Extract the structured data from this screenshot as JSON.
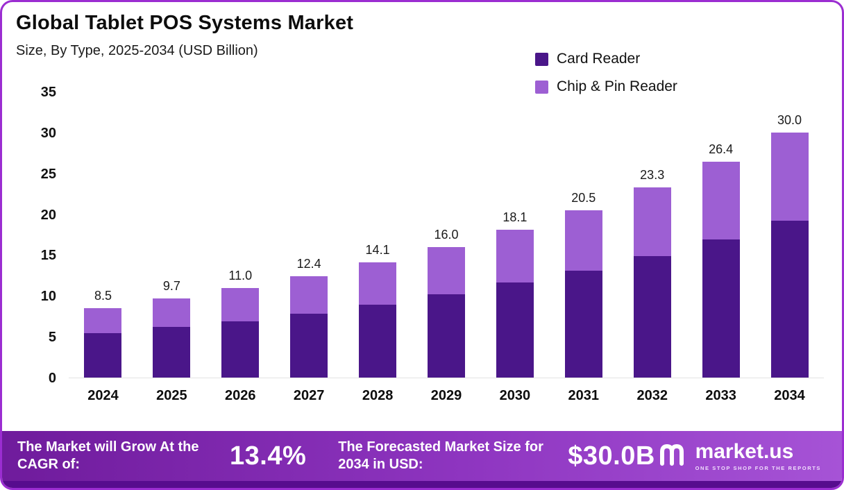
{
  "header": {
    "title": "Global Tablet POS Systems Market",
    "subtitle": "Size, By Type, 2025-2034 (USD Billion)"
  },
  "legend": {
    "items": [
      {
        "label": "Card Reader",
        "color": "#4a1689"
      },
      {
        "label": "Chip & Pin Reader",
        "color": "#9d5fd3"
      }
    ]
  },
  "chart_data": {
    "type": "bar",
    "stacked": true,
    "title": "Global Tablet POS Systems Market Size, By Type, 2025-2034 (USD Billion)",
    "categories": [
      "2024",
      "2025",
      "2026",
      "2027",
      "2028",
      "2029",
      "2030",
      "2031",
      "2032",
      "2033",
      "2034"
    ],
    "series": [
      {
        "name": "Card Reader",
        "color": "#4a1689",
        "values": [
          5.4,
          6.2,
          6.9,
          7.8,
          8.9,
          10.2,
          11.6,
          13.1,
          14.9,
          16.9,
          19.2
        ]
      },
      {
        "name": "Chip & Pin Reader",
        "color": "#9d5fd3",
        "values": [
          3.1,
          3.5,
          4.1,
          4.6,
          5.2,
          5.8,
          6.5,
          7.4,
          8.4,
          9.5,
          10.8
        ]
      }
    ],
    "totals": [
      8.5,
      9.7,
      11.0,
      12.4,
      14.1,
      16.0,
      18.1,
      20.5,
      23.3,
      26.4,
      30.0
    ],
    "total_labels": [
      "8.5",
      "9.7",
      "11.0",
      "12.4",
      "14.1",
      "16.0",
      "18.1",
      "20.5",
      "23.3",
      "26.4",
      "30.0"
    ],
    "xlabel": "",
    "ylabel": "",
    "ylim": [
      0,
      35
    ],
    "yticks": [
      0,
      5,
      10,
      15,
      20,
      25,
      30,
      35
    ],
    "grid": false,
    "legend_position": "top-right"
  },
  "footer": {
    "cagr_label": "The Market will Grow At the CAGR of:",
    "cagr_value": "13.4%",
    "forecast_label": "The Forecasted Market Size for 2034 in USD:",
    "forecast_value": "$30.0B",
    "brand": "market.us",
    "brand_tagline": "ONE STOP SHOP FOR THE REPORTS"
  }
}
